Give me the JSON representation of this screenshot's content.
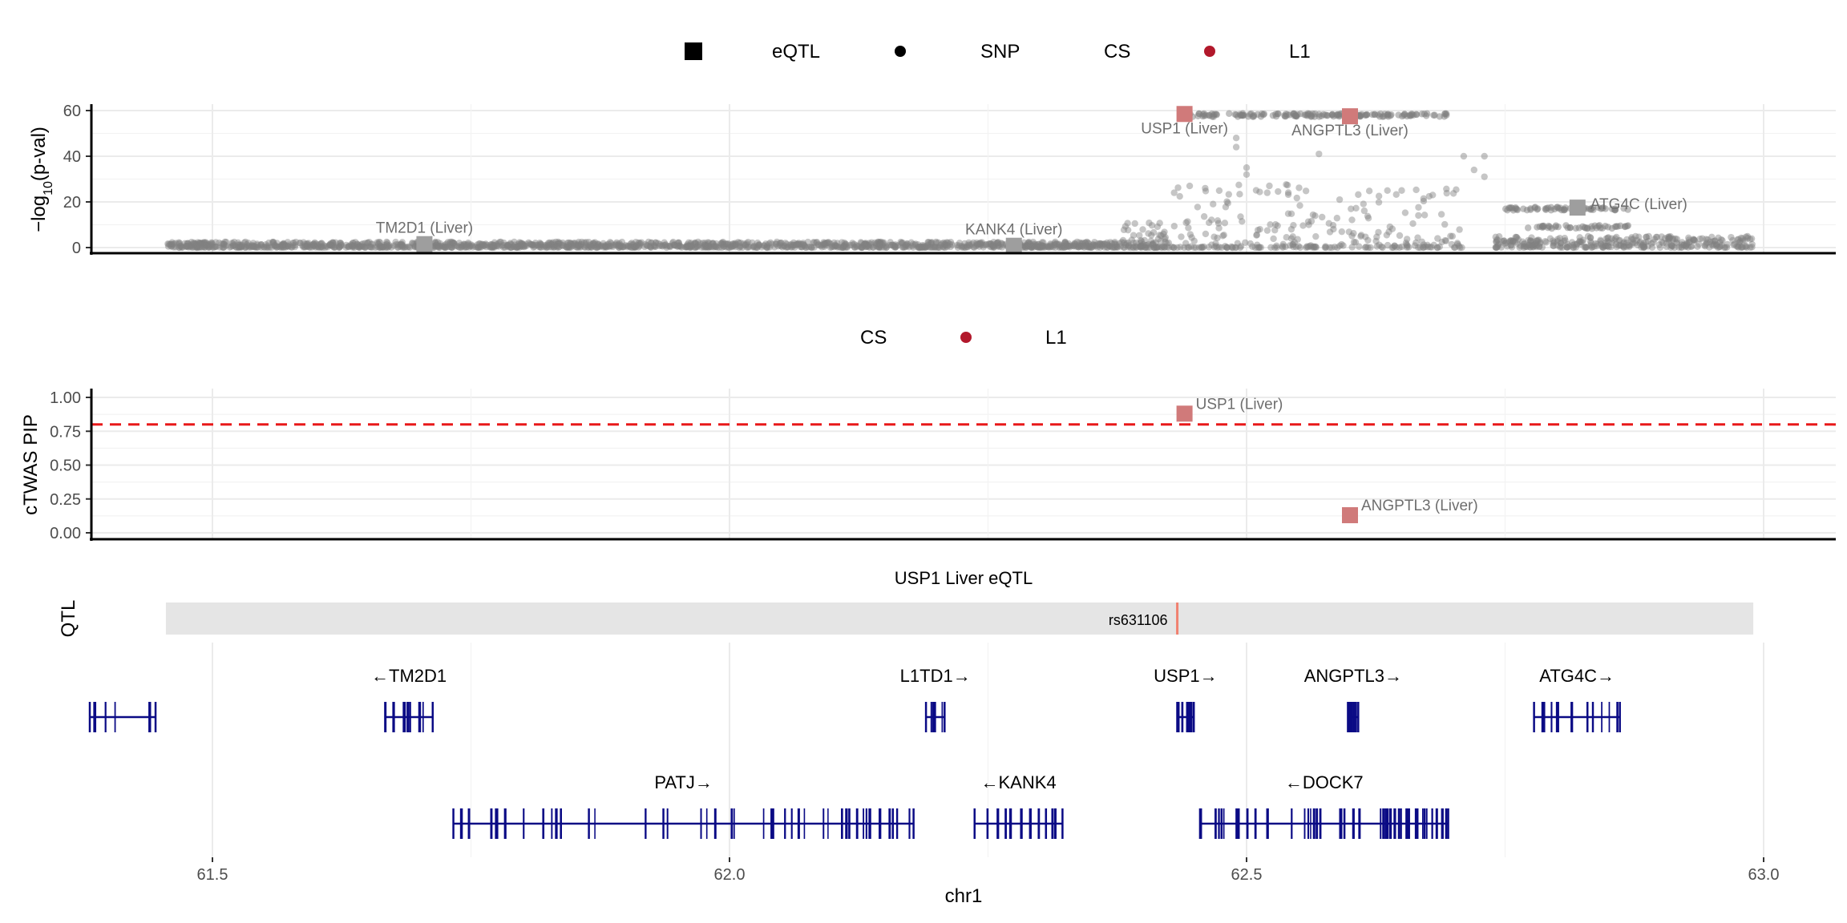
{
  "legend_top": {
    "shape_title": "",
    "items": [
      {
        "symbol": "square",
        "label": "eQTL"
      },
      {
        "symbol": "circle",
        "label": "SNP"
      }
    ],
    "cs_title": "CS",
    "cs_items": [
      {
        "label": "L1",
        "color": "#b2182b"
      }
    ]
  },
  "legend_mid": {
    "cs_title": "CS",
    "cs_items": [
      {
        "label": "L1",
        "color": "#b2182b"
      }
    ]
  },
  "colors": {
    "snp": "#808080",
    "eqtl_grey": "#9e9e9e",
    "cs_red": "#d07a7a",
    "threshold": "#e8191a",
    "gene": "#0a0a85",
    "qtl_band": "#e5e5e5",
    "qtl_mark": "#f08070"
  },
  "chart_data": [
    {
      "type": "scatter",
      "name": "gwas-panel",
      "ylabel": "−log10(p-val)",
      "ylabel_parts": {
        "prefix": "−log",
        "sub": "10",
        "suffix": "(p-val)"
      },
      "xlim": [
        61.38,
        63.05
      ],
      "ylim": [
        -2,
        62
      ],
      "yticks": [
        0,
        20,
        40,
        60
      ],
      "ytick_labels": [
        "0",
        "20",
        "40",
        "60"
      ],
      "xgrid": [
        61.5,
        62.0,
        62.5,
        63.0
      ],
      "snp_regions": [
        {
          "x0": 61.455,
          "x1": 62.38,
          "ymin": 0,
          "ymax": 2.5,
          "n": 1400
        },
        {
          "x0": 62.38,
          "x1": 62.43,
          "ymin": 0,
          "ymax": 11,
          "n": 90
        },
        {
          "x0": 62.43,
          "x1": 62.71,
          "ymin": 0,
          "ymax": 28,
          "n": 260
        },
        {
          "x0": 62.74,
          "x1": 62.99,
          "ymin": 0,
          "ymax": 5,
          "n": 320
        }
      ],
      "snp_bands": [
        {
          "x0": 62.435,
          "x1": 62.7,
          "y": 58,
          "n": 160
        },
        {
          "x0": 62.75,
          "x1": 62.87,
          "y": 17,
          "n": 60
        },
        {
          "x0": 62.77,
          "x1": 62.87,
          "y": 9,
          "n": 45
        }
      ],
      "eqtl": [
        {
          "gene": "TM2D1 (Liver)",
          "x": 61.705,
          "y": 1.5,
          "cs": false,
          "label_pos": "above"
        },
        {
          "gene": "KANK4 (Liver)",
          "x": 62.275,
          "y": 0.8,
          "cs": false,
          "label_pos": "above"
        },
        {
          "gene": "USP1 (Liver)",
          "x": 62.44,
          "y": 58.5,
          "cs": true,
          "label_pos": "below"
        },
        {
          "gene": "ANGPTL3 (Liver)",
          "x": 62.6,
          "y": 57.5,
          "cs": true,
          "label_pos": "below"
        },
        {
          "gene": "ATG4C (Liver)",
          "x": 62.82,
          "y": 17.5,
          "cs": false,
          "label_pos": "right"
        }
      ]
    },
    {
      "type": "scatter",
      "name": "pip-panel",
      "ylabel": "cTWAS PIP",
      "xlim": [
        61.38,
        63.05
      ],
      "ylim": [
        -0.02,
        1.05
      ],
      "yticks": [
        0,
        0.25,
        0.5,
        0.75,
        1.0
      ],
      "ytick_labels": [
        "0.00",
        "0.25",
        "0.50",
        "0.75",
        "1.00"
      ],
      "threshold": 0.8,
      "points": [
        {
          "gene": "USP1 (Liver)",
          "x": 62.44,
          "y": 0.88
        },
        {
          "gene": "ANGPTL3 (Liver)",
          "x": 62.6,
          "y": 0.13
        }
      ]
    },
    {
      "type": "track",
      "name": "qtl-track",
      "title": "USP1 Liver eQTL",
      "ylabel": "QTL",
      "range": [
        61.455,
        62.99
      ],
      "snp": {
        "label": "rs631106",
        "x": 62.433
      }
    },
    {
      "type": "track",
      "name": "gene-track",
      "xlabel": "chr1",
      "xticks": [
        61.5,
        62.0,
        62.5,
        63.0
      ],
      "xtick_labels": [
        "61.5",
        "62.0",
        "62.5",
        "63.0"
      ],
      "genes": [
        {
          "name": "",
          "row": 1,
          "start": 61.38,
          "end": 61.445,
          "exons": 8
        },
        {
          "name": "←TM2D1",
          "row": 1,
          "start": 61.667,
          "end": 61.713,
          "exons": 9
        },
        {
          "name": "L1TD1→",
          "row": 1,
          "start": 62.19,
          "end": 62.208,
          "exons": 5
        },
        {
          "name": "USP1→",
          "row": 1,
          "start": 62.433,
          "end": 62.449,
          "exons": 7
        },
        {
          "name": "ANGPTL3→",
          "row": 1,
          "start": 62.598,
          "end": 62.608,
          "exons": 5
        },
        {
          "name": "ATG4C→",
          "row": 1,
          "start": 62.778,
          "end": 62.861,
          "exons": 12
        },
        {
          "name": "PATJ→",
          "row": 2,
          "start": 61.733,
          "end": 62.178,
          "exons": 45
        },
        {
          "name": "←KANK4",
          "row": 2,
          "start": 62.237,
          "end": 62.322,
          "exons": 12
        },
        {
          "name": "←DOCK7",
          "row": 2,
          "start": 62.455,
          "end": 62.695,
          "exons": 55
        }
      ]
    }
  ]
}
